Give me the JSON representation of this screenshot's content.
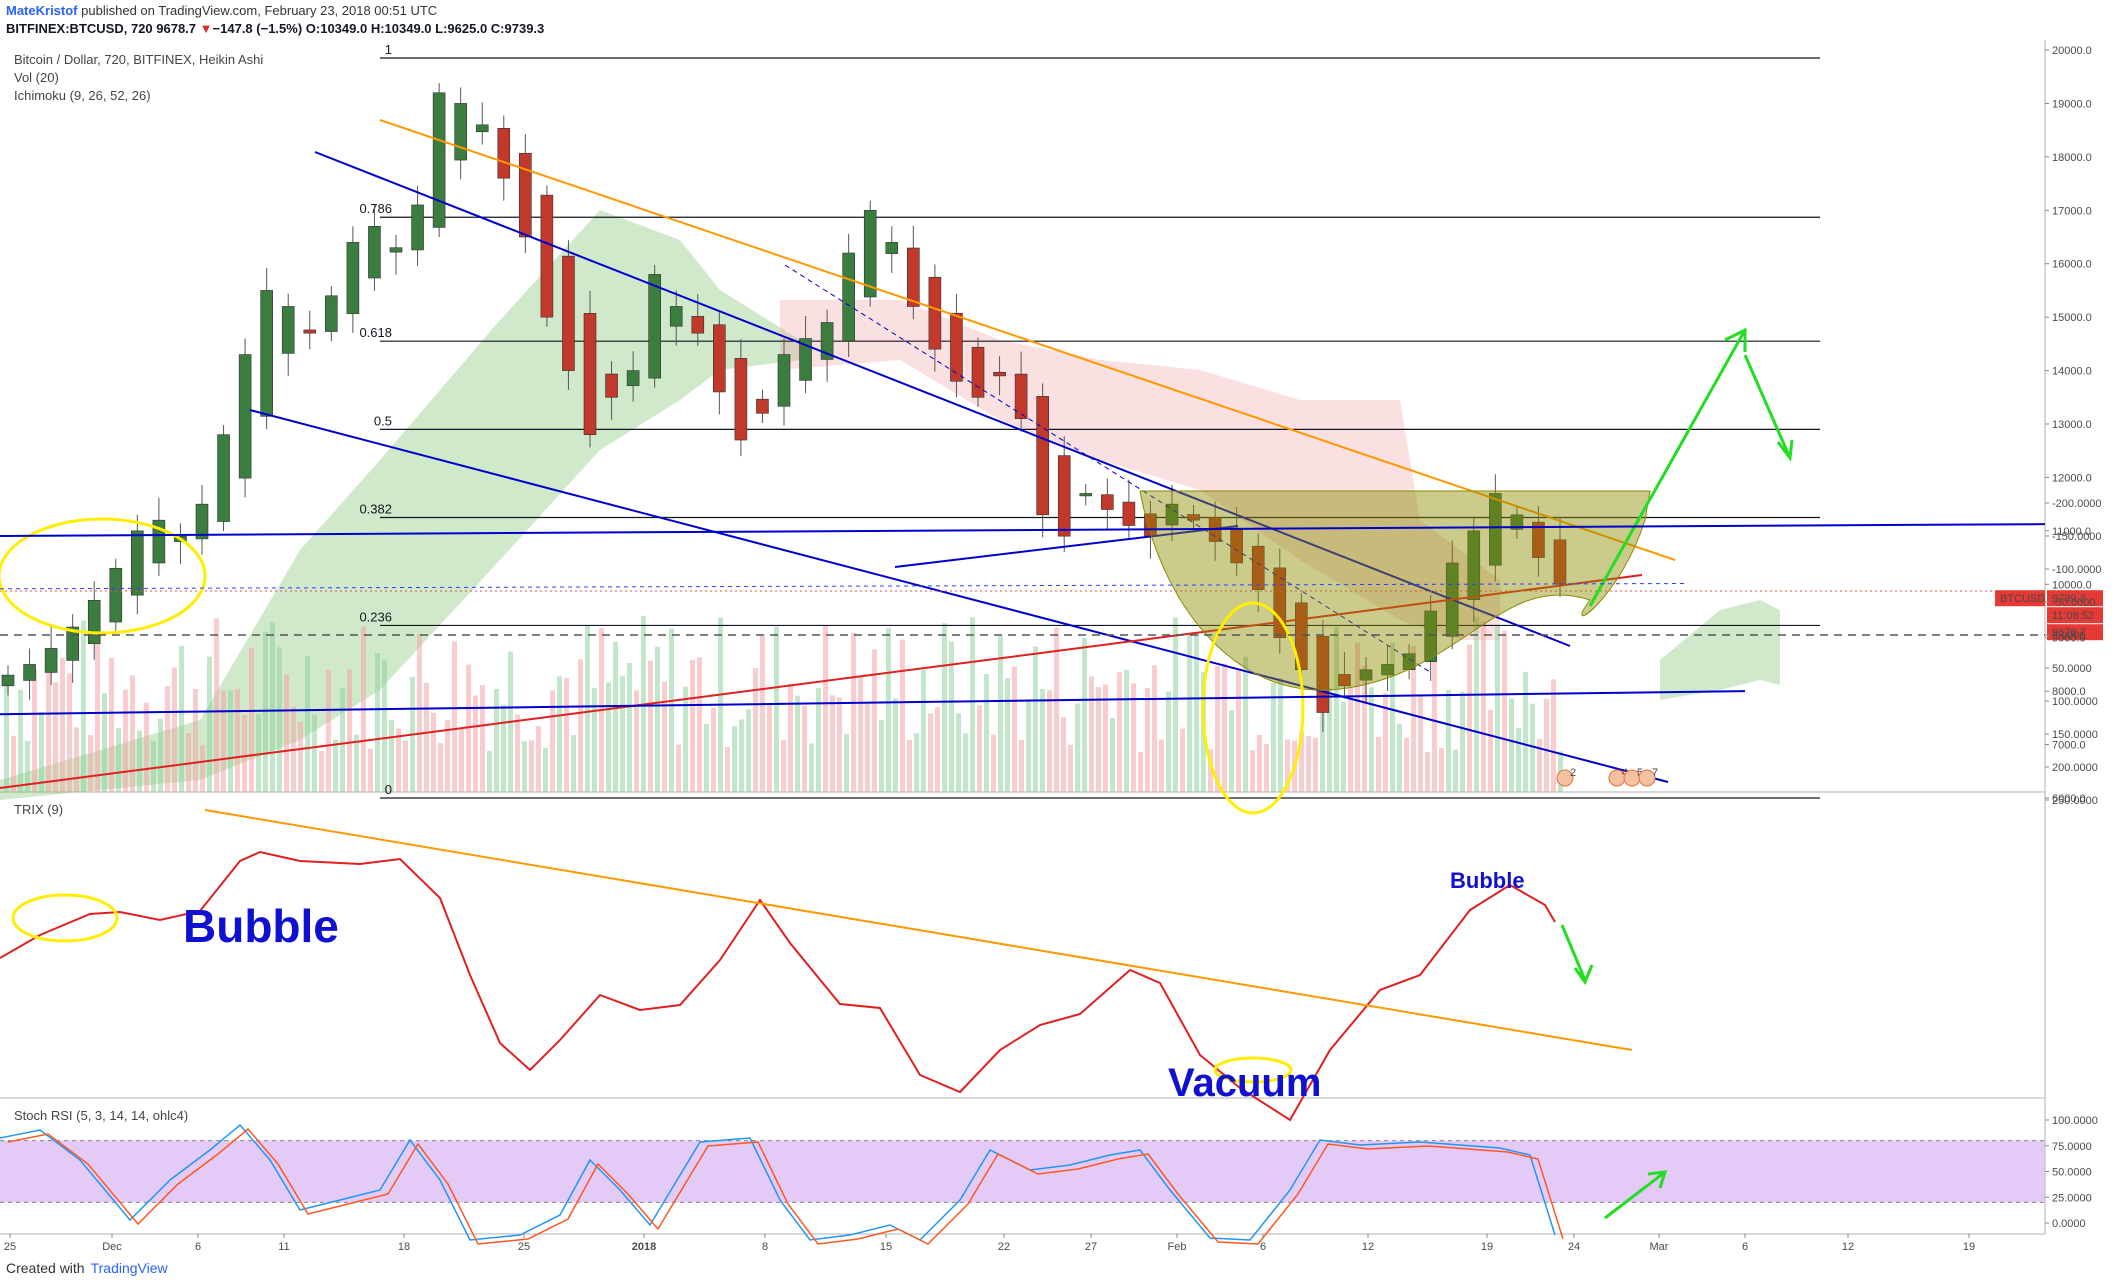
{
  "header": {
    "author": "MateKristof",
    "published": "published on TradingView.com, February 23, 2018 00:51 UTC",
    "symbol": "BITFINEX:BTCUSD, 720",
    "last": "9678.7",
    "arrow": "▼",
    "change": "−147.8 (−1.5%)",
    "ohlc": "O:10349.0 H:10349.0 L:9625.0 C:9739.3"
  },
  "footer": {
    "created_with": "Created with",
    "brand": "TradingView"
  },
  "panes": {
    "main_title": "Bitcoin / Dollar, 720, BITFINEX, Heikin Ashi",
    "vol": "Vol (20)",
    "ichimoku": "Ichimoku (9, 26, 52, 26)",
    "trix": "TRIX (9)",
    "stoch": "Stoch RSI (5, 3, 14, 14, ohlc4)"
  },
  "annotations": {
    "bubble_big": "Bubble",
    "bubble_small": "Bubble",
    "vacuum": "Vacuum",
    "symbol_tag": "BTCUSD",
    "price_tag": "9739.3",
    "time_tag": "11:08:52",
    "price_tag2": "9678.7",
    "events": [
      "2",
      "4",
      "5",
      "7"
    ]
  },
  "colors": {
    "bull": "#26a69a",
    "bear": "#ef5350",
    "fib": "#131722",
    "trend_blue": "#0000cc",
    "trend_orange": "#ff9800",
    "trend_red": "#e02020",
    "arrow_green": "#22dd22",
    "highlight_yellow": "#ffee00",
    "cup": "#8b8b00",
    "trix_line": "#e02020",
    "stoch_k": "#2196f3",
    "stoch_d": "#ff5722",
    "stoch_band": "#d7b4f3"
  },
  "chart_data": {
    "type": "candlestick",
    "price_axis": {
      "ticks": [
        "20000.0",
        "19000.0",
        "18000.0",
        "17000.0",
        "16000.0",
        "15000.0",
        "14000.0",
        "13000.0",
        "12000.0",
        "11000.0",
        "10000.0",
        "9000.0",
        "8000.0",
        "7000.0",
        "6000.0"
      ],
      "values": [
        20000,
        19000,
        18000,
        17000,
        16000,
        15000,
        14000,
        13000,
        12000,
        11000,
        10000,
        9000,
        8000,
        7000,
        6000
      ],
      "range": [
        6000,
        20000
      ]
    },
    "trix_axis": {
      "ticks": [
        "250.0000",
        "200.0000",
        "150.0000",
        "100.0000",
        "50.0000",
        "0.0000",
        "-50.0000",
        "-100.0000",
        "-150.0000",
        "-200.0000"
      ],
      "values": [
        250,
        200,
        150,
        100,
        50,
        0,
        -50,
        -100,
        -150,
        -200
      ],
      "range": [
        -200,
        250
      ]
    },
    "stoch_axis": {
      "ticks": [
        "100.0000",
        "75.0000",
        "50.0000",
        "25.0000",
        "0.0000"
      ],
      "values": [
        100,
        75,
        50,
        25,
        0
      ],
      "range": [
        0,
        100
      ]
    },
    "time_axis": {
      "ticks": [
        "25",
        "Dec",
        "6",
        "11",
        "18",
        "25",
        "2018",
        "8",
        "15",
        "22",
        "27",
        "Feb",
        "6",
        "12",
        "19",
        "24",
        "Mar",
        "6",
        "12",
        "19"
      ]
    },
    "fib_levels": [
      {
        "label": "1",
        "price": 19850
      },
      {
        "label": "0.786",
        "price": 16870
      },
      {
        "label": "0.618",
        "price": 14550
      },
      {
        "label": "0.5",
        "price": 12900
      },
      {
        "label": "0.382",
        "price": 11250
      },
      {
        "label": "0.236",
        "price": 9230
      },
      {
        "label": "0",
        "price": 6000
      }
    ],
    "candles_close": [
      8300,
      8500,
      8800,
      9200,
      9700,
      10300,
      11000,
      11200,
      10900,
      11500,
      12800,
      14300,
      15500,
      15200,
      14700,
      15400,
      16400,
      16700,
      16300,
      17100,
      19200,
      19000,
      18600,
      17600,
      16500,
      15000,
      14000,
      12800,
      13500,
      14000,
      15800,
      15200,
      14700,
      13600,
      12700,
      13200,
      14300,
      14600,
      14900,
      16200,
      17000,
      16400,
      15200,
      14400,
      13800,
      13500,
      13900,
      13100,
      11300,
      10900,
      11700,
      11400,
      11100,
      10900,
      11500,
      11200,
      10800,
      10400,
      9900,
      9000,
      8400,
      7600,
      8100,
      8400,
      8500,
      8700,
      9500,
      10400,
      11000,
      11700,
      11300,
      10500,
      10000
    ]
  }
}
